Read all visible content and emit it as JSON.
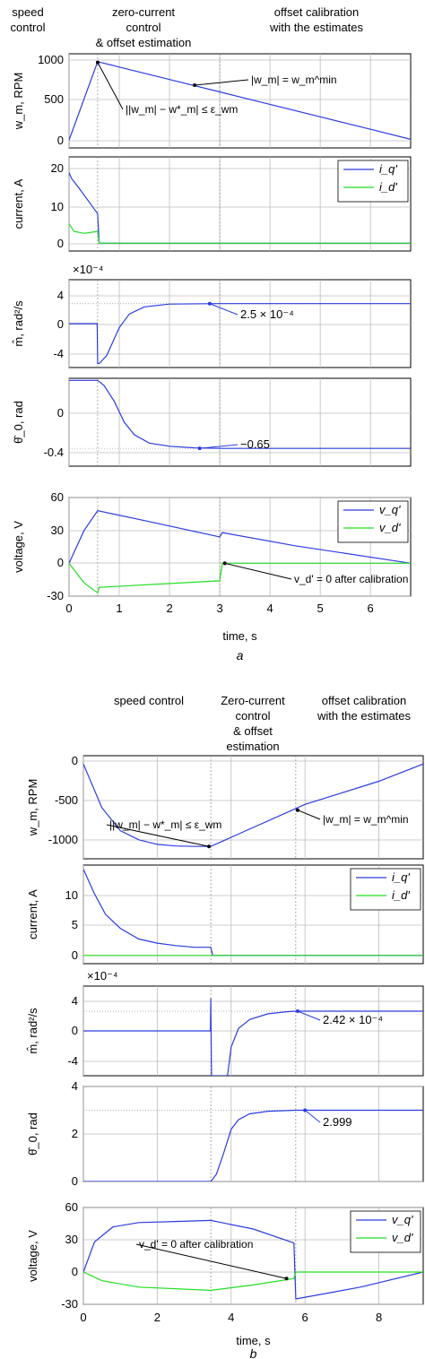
{
  "chart_data": [
    {
      "type": "line",
      "panel_label": "a",
      "phases": [
        "speed\ncontrol",
        "zero-current\ncontrol\n& offset estimation",
        "offset calibration\nwith the estimates"
      ],
      "xlabel": "time, s",
      "xlim": [
        0,
        6.8
      ],
      "xticks": [
        "0",
        "1",
        "2",
        "3",
        "4",
        "5",
        "6"
      ],
      "markers_x": [
        0.57,
        3.0
      ],
      "subplots": [
        {
          "ylabel": "w_m, RPM",
          "ylim": [
            -100,
            1100
          ],
          "yticks": [
            "0",
            "500",
            "1000"
          ],
          "series": [
            {
              "name": "",
              "color": "#2c3ce0",
              "x": [
                0,
                0.57,
                1.0,
                2.0,
                3.0,
                4.0,
                5.0,
                6.0,
                6.8
              ],
              "y": [
                0,
                1000,
                931,
                772,
                614,
                455,
                297,
                138,
                10
              ]
            }
          ],
          "annotations": [
            "||w_m| − w*_m| ≤ ε_wm",
            "|w_m| = w_m^min"
          ]
        },
        {
          "ylabel": "current, A",
          "ylim": [
            -2,
            22
          ],
          "yticks": [
            "0",
            "10",
            "20"
          ],
          "series": [
            {
              "name": "i_q'",
              "color": "#2c3ce0",
              "x": [
                0,
                0.05,
                0.2,
                0.4,
                0.57,
                0.6,
                2,
                4,
                6.8
              ],
              "y": [
                18,
                16.5,
                14,
                10.5,
                7.5,
                0,
                0,
                0,
                0
              ]
            },
            {
              "name": "i_d'",
              "color": "#22dd22",
              "x": [
                0,
                0.1,
                0.3,
                0.57,
                0.6,
                2,
                4,
                6.8
              ],
              "y": [
                5,
                3,
                2.5,
                3,
                0,
                0,
                0,
                0
              ]
            }
          ]
        },
        {
          "ylabel": "m̂, rad²/s",
          "yexp": "×10⁻⁴",
          "ylim": [
            -5.5,
            5.5
          ],
          "yticks": [
            "-4",
            "0",
            "4"
          ],
          "series": [
            {
              "name": "",
              "color": "#2c3ce0",
              "x": [
                0,
                0.56,
                0.57,
                0.6,
                0.75,
                1.0,
                1.2,
                1.5,
                2.0,
                3.0,
                6.8
              ],
              "y": [
                0,
                0,
                -5,
                -5,
                -4,
                -0.5,
                1.2,
                2.1,
                2.45,
                2.5,
                2.5
              ]
            }
          ],
          "annotations": [
            "2.5 × 10⁻⁴"
          ]
        },
        {
          "ylabel": "θ̂_0, rad",
          "ylim": [
            -0.82,
            0.02
          ],
          "yticks": [
            "-0.4",
            "0"
          ],
          "series": [
            {
              "name": "",
              "color": "#2c3ce0",
              "x": [
                0,
                0.57,
                0.7,
                0.9,
                1.1,
                1.3,
                1.6,
                2.0,
                2.5,
                3.0,
                6.8
              ],
              "y": [
                0,
                0,
                -0.05,
                -0.2,
                -0.4,
                -0.52,
                -0.6,
                -0.63,
                -0.645,
                -0.65,
                -0.65
              ]
            }
          ],
          "annotations": [
            "−0.65"
          ]
        },
        {
          "ylabel": "voltage, V",
          "ylim": [
            -30,
            60
          ],
          "yticks": [
            "-30",
            "0",
            "30",
            "60"
          ],
          "series": [
            {
              "name": "v_q'",
              "color": "#2c3ce0",
              "x": [
                0,
                0.3,
                0.57,
                1.5,
                3.0,
                3.05,
                4.5,
                6.8
              ],
              "y": [
                0,
                30,
                48,
                39,
                24,
                28,
                16,
                0
              ]
            },
            {
              "name": "v_d'",
              "color": "#22dd22",
              "x": [
                0,
                0.3,
                0.57,
                0.6,
                3.0,
                3.05,
                6.8
              ],
              "y": [
                0,
                -18,
                -27,
                -22,
                -16,
                0,
                0
              ]
            }
          ],
          "annotations": [
            "v_d' = 0 after calibration"
          ]
        }
      ]
    },
    {
      "type": "line",
      "panel_label": "b",
      "phases": [
        "speed control",
        "Zero-current\ncontrol\n& offset\nestimation",
        "offset calibration\nwith the estimates"
      ],
      "xlabel": "time, s",
      "xlim": [
        0,
        9.2
      ],
      "xticks": [
        "0",
        "2",
        "4",
        "6",
        "8"
      ],
      "markers_x": [
        3.45,
        5.75
      ],
      "subplots": [
        {
          "ylabel": "w_m, RPM",
          "ylim": [
            -1150,
            100
          ],
          "yticks": [
            "-1000",
            "-500",
            "0"
          ],
          "series": [
            {
              "name": "",
              "color": "#2c3ce0",
              "x": [
                0,
                0.5,
                1.0,
                1.5,
                2.0,
                2.5,
                3.0,
                3.45,
                4.6,
                5.75,
                6.0,
                7.0,
                8.0,
                9.2
              ],
              "y": [
                0,
                -530,
                -810,
                -920,
                -975,
                -995,
                -1000,
                -1000,
                -770,
                -540,
                -490,
                -350,
                -210,
                0
              ]
            }
          ],
          "annotations": [
            "||w_m| − w*_m| ≤ ε_wm",
            "|w_m| = w_m^min"
          ]
        },
        {
          "ylabel": "current, A",
          "ylim": [
            -1,
            11
          ],
          "yticks": [
            "0",
            "5",
            "10"
          ],
          "series": [
            {
              "name": "i_q'",
              "color": "#2c3ce0",
              "x": [
                0,
                0.3,
                0.6,
                1.0,
                1.5,
                2.0,
                2.5,
                3.0,
                3.45,
                3.5,
                9.2
              ],
              "y": [
                10.5,
                7.5,
                5,
                3.3,
                2,
                1.5,
                1.2,
                1,
                1,
                0,
                0
              ]
            },
            {
              "name": "i_d'",
              "color": "#22dd22",
              "x": [
                0,
                3.45,
                3.5,
                9.2
              ],
              "y": [
                0,
                0,
                0,
                0
              ]
            }
          ]
        },
        {
          "ylabel": "m̂, rad²/s",
          "yexp": "×10⁻⁴",
          "ylim": [
            -5.5,
            5.5
          ],
          "yticks": [
            "-4",
            "0",
            "4"
          ],
          "series": [
            {
              "name": "",
              "color": "#2c3ce0",
              "x": [
                0,
                3.44,
                3.45,
                3.47,
                3.9,
                4.0,
                4.2,
                4.5,
                5.0,
                5.5,
                5.75,
                9.2
              ],
              "y": [
                0,
                0,
                4,
                -5.5,
                -5.5,
                -2,
                0.3,
                1.4,
                2.1,
                2.35,
                2.42,
                2.42
              ]
            }
          ],
          "annotations": [
            "2.42 × 10⁻⁴"
          ]
        },
        {
          "ylabel": "θ̂_0, rad",
          "ylim": [
            0,
            4
          ],
          "yticks": [
            "0",
            "2",
            "4"
          ],
          "series": [
            {
              "name": "",
              "color": "#2c3ce0",
              "x": [
                0,
                3.45,
                3.6,
                3.8,
                4.0,
                4.2,
                4.5,
                5.0,
                5.75,
                9.2
              ],
              "y": [
                0,
                0,
                0.3,
                1.2,
                2.2,
                2.6,
                2.85,
                2.96,
                2.999,
                2.999
              ]
            }
          ],
          "annotations": [
            "2.999"
          ]
        },
        {
          "ylabel": "voltage, V",
          "ylim": [
            -30,
            60
          ],
          "yticks": [
            "-30",
            "0",
            "30",
            "60"
          ],
          "series": [
            {
              "name": "v_q'",
              "color": "#2c3ce0",
              "x": [
                0,
                0.3,
                0.8,
                1.5,
                2.5,
                3.45,
                4.6,
                5.7,
                5.75,
                7.5,
                9.2
              ],
              "y": [
                0,
                28,
                42,
                46,
                47,
                48,
                40,
                27,
                -25,
                -14,
                0
              ]
            },
            {
              "name": "v_d'",
              "color": "#22dd22",
              "x": [
                0,
                0.5,
                1.5,
                3.45,
                4.6,
                5.7,
                5.75,
                9.2
              ],
              "y": [
                0,
                -8,
                -14,
                -17,
                -12,
                -6,
                0,
                0
              ]
            }
          ],
          "annotations": [
            "v_d' = 0 after calibration"
          ]
        }
      ]
    }
  ]
}
